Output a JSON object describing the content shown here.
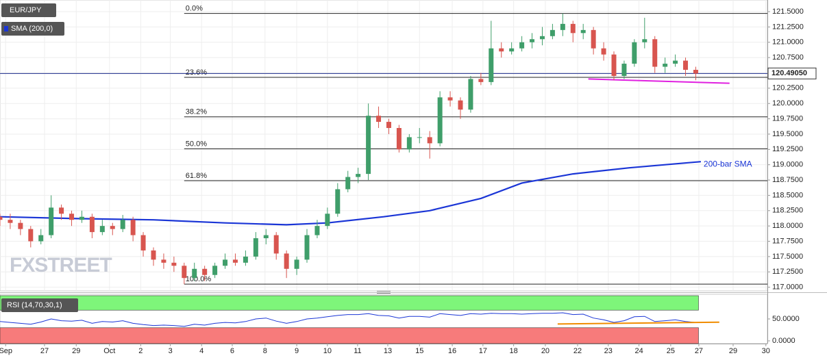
{
  "chart_data": [
    {
      "type": "candlestick",
      "name": "EUR/JPY",
      "up_color": "#3f9e6a",
      "down_color": "#d8554f",
      "x": [
        0,
        2,
        4,
        6,
        8,
        10,
        12,
        14,
        16,
        18,
        20,
        22,
        24,
        26,
        28,
        30,
        32,
        34,
        36,
        38,
        40,
        42,
        44,
        46,
        48,
        50,
        52,
        54,
        56,
        58,
        60,
        62,
        64,
        66,
        68,
        70,
        72,
        74,
        76,
        78,
        80,
        82,
        84,
        86,
        88,
        90,
        92,
        94,
        96,
        98,
        100,
        102,
        104,
        106,
        108,
        110,
        112,
        114,
        116,
        118,
        120,
        122,
        124,
        126,
        128,
        130,
        132,
        134,
        136
      ],
      "open": [
        118.15,
        118.1,
        118.05,
        117.95,
        117.75,
        117.85,
        118.3,
        118.2,
        118.1,
        118.15,
        117.9,
        118.0,
        117.95,
        118.1,
        117.85,
        117.6,
        117.45,
        117.4,
        117.35,
        117.15,
        117.3,
        117.2,
        117.35,
        117.45,
        117.4,
        117.5,
        117.8,
        117.85,
        117.55,
        117.3,
        117.45,
        117.85,
        118.0,
        118.2,
        118.6,
        118.8,
        118.85,
        119.8,
        119.7,
        119.6,
        119.25,
        119.45,
        119.45,
        119.35,
        120.1,
        120.05,
        119.9,
        120.4,
        120.35,
        120.9,
        120.85,
        120.9,
        121.0,
        121.05,
        121.1,
        121.2,
        121.3,
        121.15,
        121.2,
        120.9,
        120.8,
        120.45,
        120.65,
        121.0,
        121.05,
        120.6,
        120.65,
        120.7,
        120.55
      ],
      "high": [
        118.2,
        118.2,
        118.1,
        118.0,
        117.95,
        118.5,
        118.35,
        118.25,
        118.25,
        118.2,
        118.1,
        118.05,
        118.18,
        118.15,
        117.9,
        117.65,
        117.55,
        117.5,
        117.4,
        117.4,
        117.35,
        117.4,
        117.55,
        117.55,
        117.6,
        117.9,
        117.95,
        117.9,
        117.6,
        117.5,
        117.95,
        118.1,
        118.3,
        118.7,
        118.9,
        118.95,
        120.0,
        119.95,
        119.75,
        119.65,
        119.5,
        119.6,
        119.55,
        120.2,
        120.2,
        120.1,
        120.45,
        120.5,
        121.35,
        121.0,
        121.0,
        121.1,
        121.15,
        121.25,
        121.3,
        121.47,
        121.35,
        121.3,
        121.25,
        121.0,
        120.85,
        120.7,
        121.05,
        121.4,
        121.1,
        120.75,
        120.8,
        120.75,
        120.6
      ],
      "low": [
        118.0,
        117.95,
        117.85,
        117.65,
        117.7,
        117.8,
        118.1,
        118.0,
        118.05,
        117.8,
        117.85,
        117.85,
        117.9,
        117.75,
        117.5,
        117.35,
        117.3,
        117.25,
        117.05,
        117.1,
        117.1,
        117.15,
        117.3,
        117.35,
        117.35,
        117.45,
        117.7,
        117.45,
        117.15,
        117.2,
        117.4,
        117.8,
        117.95,
        118.15,
        118.55,
        118.7,
        118.75,
        119.6,
        119.5,
        119.2,
        119.2,
        119.35,
        119.1,
        119.3,
        119.95,
        119.75,
        119.85,
        120.3,
        120.3,
        120.75,
        120.8,
        120.85,
        120.9,
        120.95,
        121.05,
        121.1,
        121.0,
        121.05,
        120.8,
        120.7,
        120.38,
        120.4,
        120.6,
        120.9,
        120.5,
        120.5,
        120.6,
        120.45,
        120.38
      ],
      "close": [
        118.1,
        118.05,
        117.95,
        117.75,
        117.85,
        118.3,
        118.2,
        118.1,
        118.15,
        117.9,
        118.0,
        117.95,
        118.1,
        117.85,
        117.6,
        117.45,
        117.4,
        117.35,
        117.15,
        117.3,
        117.2,
        117.35,
        117.45,
        117.4,
        117.5,
        117.8,
        117.85,
        117.55,
        117.3,
        117.45,
        117.85,
        118.0,
        118.2,
        118.6,
        118.8,
        118.85,
        119.8,
        119.7,
        119.6,
        119.25,
        119.45,
        119.45,
        119.35,
        120.1,
        120.05,
        119.9,
        120.4,
        120.35,
        120.9,
        120.85,
        120.9,
        121.0,
        121.05,
        121.1,
        121.2,
        121.3,
        121.15,
        121.2,
        120.9,
        120.8,
        120.45,
        120.65,
        121.0,
        121.05,
        120.6,
        120.65,
        120.7,
        120.55,
        120.49
      ],
      "xlim": [
        0,
        150
      ],
      "ylim": [
        116.94,
        121.69
      ],
      "yticks": [
        {
          "value": 117,
          "label": "117.0000"
        },
        {
          "value": 117.25,
          "label": "117.2500"
        },
        {
          "value": 117.5,
          "label": "117.5000"
        },
        {
          "value": 117.75,
          "label": "117.7500"
        },
        {
          "value": 118,
          "label": "118.0000"
        },
        {
          "value": 118.25,
          "label": "118.2500"
        },
        {
          "value": 118.5,
          "label": "118.5000"
        },
        {
          "value": 118.75,
          "label": "118.7500"
        },
        {
          "value": 119,
          "label": "119.0000"
        },
        {
          "value": 119.25,
          "label": "119.2500"
        },
        {
          "value": 119.5,
          "label": "119.5000"
        },
        {
          "value": 119.75,
          "label": "119.7500"
        },
        {
          "value": 120,
          "label": "120.0000"
        },
        {
          "value": 120.25,
          "label": "120.2500"
        },
        {
          "value": 120.5,
          "label": "120.5000"
        },
        {
          "value": 120.75,
          "label": "120.7500"
        },
        {
          "value": 121,
          "label": "121.0000"
        },
        {
          "value": 121.25,
          "label": "121.2500"
        },
        {
          "value": 121.5,
          "label": "121.5000"
        }
      ],
      "grid": true,
      "sma": {
        "name": "SMA (200,0)",
        "color": "#1a35d6",
        "annotation": "200-bar SMA",
        "x": [
          0,
          15,
          30,
          44,
          56,
          64,
          75,
          84,
          94,
          102,
          112,
          123,
          137
        ],
        "values": [
          118.15,
          118.12,
          118.1,
          118.05,
          118.02,
          118.05,
          118.15,
          118.25,
          118.45,
          118.7,
          118.85,
          118.95,
          119.05
        ]
      },
      "fib_x_start": 36,
      "fib_levels": [
        {
          "label": "0.0%",
          "value": 121.47
        },
        {
          "label": "23.6%",
          "value": 120.427
        },
        {
          "label": "38.2%",
          "value": 119.781
        },
        {
          "label": "50.0%",
          "value": 119.26
        },
        {
          "label": "61.8%",
          "value": 118.74
        },
        {
          "label": "100.0%",
          "value": 117.05
        }
      ],
      "current_price": {
        "value": 120.4905,
        "label": "120.49050",
        "color": "#1a2a8c"
      },
      "support_line": {
        "color": "#e020e0",
        "x": [
          115,
          142.6
        ],
        "values": [
          120.4,
          120.33
        ]
      },
      "watermark": "FXSTREET"
    },
    {
      "type": "line",
      "name": "RSI (14,70,30,1)",
      "color": "#1a35d6",
      "x": [
        0,
        2,
        4,
        6,
        8,
        10,
        12,
        14,
        16,
        18,
        20,
        22,
        24,
        26,
        28,
        30,
        32,
        34,
        36,
        38,
        40,
        42,
        44,
        46,
        48,
        50,
        52,
        54,
        56,
        58,
        60,
        62,
        64,
        66,
        68,
        70,
        72,
        74,
        76,
        78,
        80,
        82,
        84,
        86,
        88,
        90,
        92,
        94,
        96,
        98,
        100,
        102,
        104,
        106,
        108,
        110,
        112,
        114,
        116,
        118,
        120,
        122,
        124,
        126,
        128,
        130,
        132,
        134,
        136
      ],
      "values": [
        44,
        42,
        40,
        38,
        43,
        50,
        46,
        45,
        47,
        40,
        44,
        43,
        46,
        40,
        37,
        35,
        36,
        35,
        33,
        38,
        36,
        40,
        42,
        41,
        44,
        50,
        52,
        45,
        40,
        44,
        50,
        52,
        55,
        58,
        60,
        60,
        62,
        58,
        57,
        52,
        56,
        56,
        54,
        62,
        60,
        58,
        62,
        61,
        63,
        62,
        62,
        61,
        62,
        63,
        63,
        64,
        60,
        61,
        52,
        48,
        42,
        46,
        55,
        56,
        44,
        46,
        48,
        44,
        42
      ],
      "xlim": [
        0,
        150
      ],
      "ylim": [
        -3.1,
        103.1
      ],
      "yticks": [
        {
          "value": 50,
          "label": "50.0000"
        },
        {
          "value": 0,
          "label": "0.0000"
        }
      ],
      "overbought": {
        "value": 70,
        "color": "#7ef57a"
      },
      "oversold": {
        "value": 30,
        "color": "#f77b7b"
      },
      "trend_line": {
        "color": "#f08c00",
        "x": [
          109,
          140.6
        ],
        "values": [
          38.5,
          42.5
        ]
      },
      "xticks": [
        {
          "value": 1.1,
          "label": "Sep"
        },
        {
          "value": 8.7,
          "label": "27"
        },
        {
          "value": 14.9,
          "label": "29"
        },
        {
          "value": 21.4,
          "label": "Oct"
        },
        {
          "value": 27.5,
          "label": "2"
        },
        {
          "value": 33.3,
          "label": "3"
        },
        {
          "value": 39.4,
          "label": "4"
        },
        {
          "value": 45.4,
          "label": "6"
        },
        {
          "value": 51.8,
          "label": "8"
        },
        {
          "value": 58,
          "label": "9"
        },
        {
          "value": 64,
          "label": "10"
        },
        {
          "value": 69.9,
          "label": "11"
        },
        {
          "value": 75.8,
          "label": "13"
        },
        {
          "value": 82,
          "label": "15"
        },
        {
          "value": 88.4,
          "label": "16"
        },
        {
          "value": 94.4,
          "label": "17"
        },
        {
          "value": 100.4,
          "label": "18"
        },
        {
          "value": 106.6,
          "label": "20"
        },
        {
          "value": 112.9,
          "label": "22"
        },
        {
          "value": 118.9,
          "label": "23"
        },
        {
          "value": 124.9,
          "label": "24"
        },
        {
          "value": 131.1,
          "label": "25"
        },
        {
          "value": 136.6,
          "label": "27"
        },
        {
          "value": 143.3,
          "label": "29"
        },
        {
          "value": 149.7,
          "label": "30"
        }
      ]
    }
  ]
}
